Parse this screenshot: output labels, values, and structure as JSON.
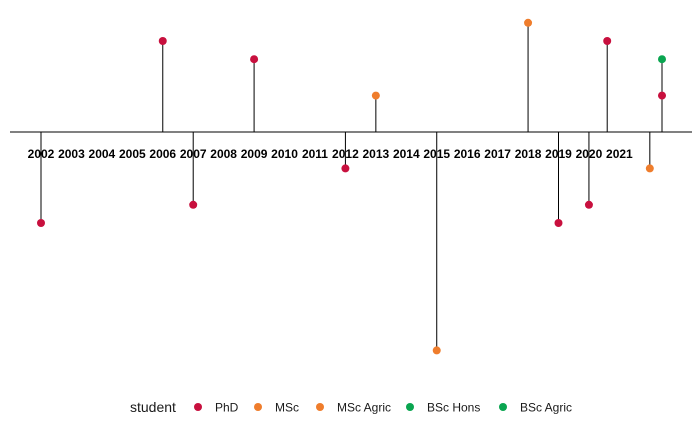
{
  "chart_data": {
    "type": "scatter",
    "subtype": "timeline-lollipop",
    "title": "",
    "xlabel": "",
    "ylabel": "",
    "year_ticks": [
      "2002",
      "2003",
      "2004",
      "2005",
      "2006",
      "2007",
      "2008",
      "2009",
      "2010",
      "2011",
      "2012",
      "2013",
      "2014",
      "2015",
      "2016",
      "2017",
      "2018",
      "2019",
      "2020",
      "2021"
    ],
    "xlim": [
      2001.1,
      2022.8
    ],
    "ylim": [
      -3.9,
      1.2
    ],
    "grid": false,
    "legend": {
      "title": "student",
      "position": "bottom",
      "entries": [
        {
          "label": "PhD",
          "color": "#c8103e"
        },
        {
          "label": "MSc",
          "color": "#ef7d2c"
        },
        {
          "label": "MSc Agric",
          "color": "#ef7d2c"
        },
        {
          "label": "BSc Hons",
          "color": "#0aa550"
        },
        {
          "label": "BSc Agric",
          "color": "#0aa550"
        }
      ]
    },
    "series": [
      {
        "name": "PhD",
        "color": "#c8103e",
        "points": [
          {
            "x": 2002,
            "y": -1.0
          },
          {
            "x": 2006,
            "y": 1.0
          },
          {
            "x": 2007,
            "y": -0.8
          },
          {
            "x": 2009,
            "y": 0.8
          },
          {
            "x": 2012,
            "y": -0.4
          },
          {
            "x": 2019,
            "y": -1.0
          },
          {
            "x": 2020,
            "y": -0.8
          },
          {
            "x": 2020.6,
            "y": 1.0
          },
          {
            "x": 2022.4,
            "y": 0.4
          }
        ]
      },
      {
        "name": "MSc",
        "color": "#ef7d2c",
        "points": [
          {
            "x": 2013,
            "y": 0.4
          },
          {
            "x": 2015,
            "y": -2.4
          },
          {
            "x": 2018,
            "y": 1.2
          },
          {
            "x": 2022,
            "y": -0.4
          }
        ]
      },
      {
        "name": "BSc Hons",
        "color": "#0aa550",
        "points": [
          {
            "x": 2022.4,
            "y": 0.8
          }
        ]
      }
    ]
  }
}
